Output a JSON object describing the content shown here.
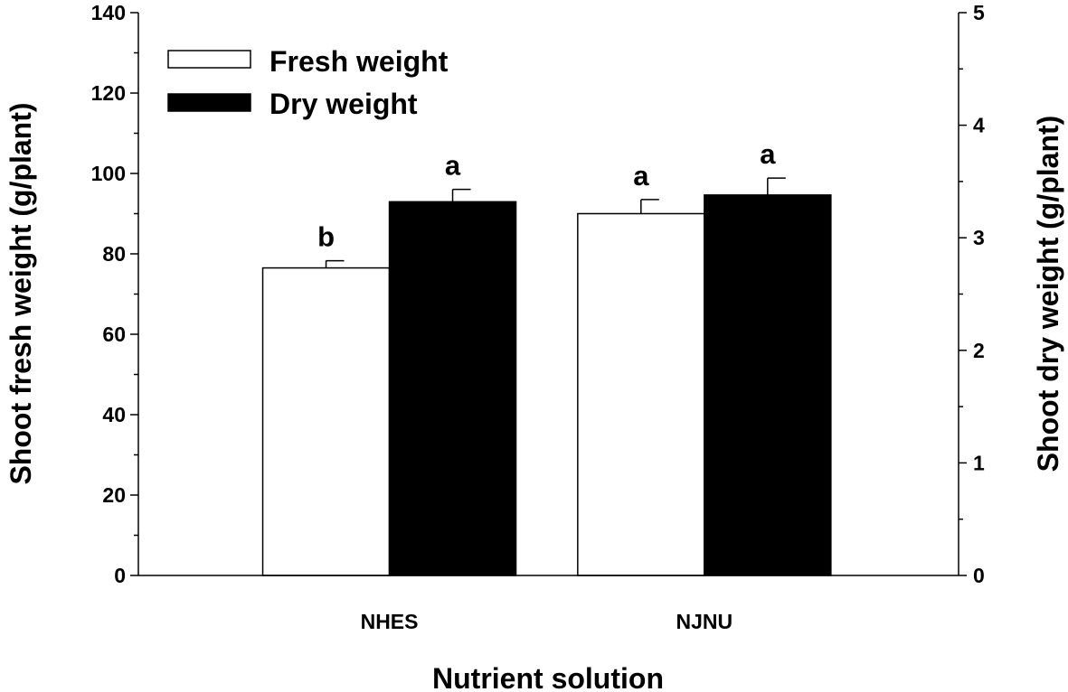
{
  "chart_data": {
    "type": "bar",
    "title": "",
    "categories": [
      "NHES",
      "NJNU"
    ],
    "xlabel": "Nutrient solution",
    "ylabel_left": "Shoot fresh weight (g/plant)",
    "ylabel_right": "Shoot dry weight (g/plant)",
    "ylim_left": [
      0,
      140
    ],
    "ylim_right": [
      0,
      5
    ],
    "yticks_left": [
      "0",
      "20",
      "40",
      "60",
      "80",
      "100",
      "120",
      "140"
    ],
    "yticks_right": [
      "0",
      "1",
      "2",
      "3",
      "4",
      "5"
    ],
    "grid": false,
    "legend_position": "top-left",
    "series": [
      {
        "name": "Fresh weight",
        "axis": "left",
        "color": "#ffffff",
        "values": [
          76.5,
          90.0
        ],
        "errors": [
          1.8,
          3.5
        ],
        "labels": [
          "b",
          "a"
        ]
      },
      {
        "name": "Dry weight",
        "axis": "right",
        "color": "#000000",
        "values": [
          3.32,
          3.38
        ],
        "errors": [
          0.11,
          0.15
        ],
        "labels": [
          "a",
          "a"
        ]
      }
    ]
  }
}
